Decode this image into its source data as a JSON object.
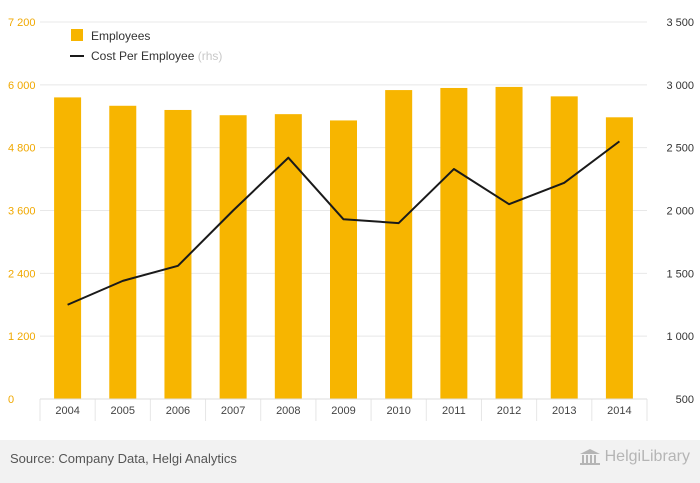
{
  "chart_data": {
    "type": "bar+line",
    "categories": [
      "2004",
      "2005",
      "2006",
      "2007",
      "2008",
      "2009",
      "2010",
      "2011",
      "2012",
      "2013",
      "2014"
    ],
    "series": [
      {
        "name": "Employees",
        "type": "bar",
        "axis": "left",
        "color": "#f7b500",
        "values": [
          5760,
          5600,
          5520,
          5420,
          5440,
          5320,
          5900,
          5940,
          5960,
          5780,
          5380
        ]
      },
      {
        "name": "Cost Per Employee",
        "suffix": "(rhs)",
        "type": "line",
        "axis": "right",
        "color": "#1a1a1a",
        "values": [
          1250,
          1440,
          1560,
          2000,
          2420,
          1930,
          1900,
          2330,
          2050,
          2220,
          2550
        ]
      }
    ],
    "left_axis": {
      "min": 0,
      "max": 7200,
      "ticks": [
        "0",
        "1 200",
        "2 400",
        "3 600",
        "4 800",
        "6 000",
        "7 200"
      ],
      "tick_values": [
        0,
        1200,
        2400,
        3600,
        4800,
        6000,
        7200
      ]
    },
    "right_axis": {
      "min": 500,
      "max": 3500,
      "ticks": [
        "500",
        "1 000",
        "1 500",
        "2 000",
        "2 500",
        "3 000",
        "3 500"
      ],
      "tick_values": [
        500,
        1000,
        1500,
        2000,
        2500,
        3000,
        3500
      ]
    },
    "legend_position": "top-left",
    "grid": true
  },
  "footer": {
    "source": "Source: Company Data, Helgi Analytics",
    "brand": "HelgiLibrary"
  }
}
